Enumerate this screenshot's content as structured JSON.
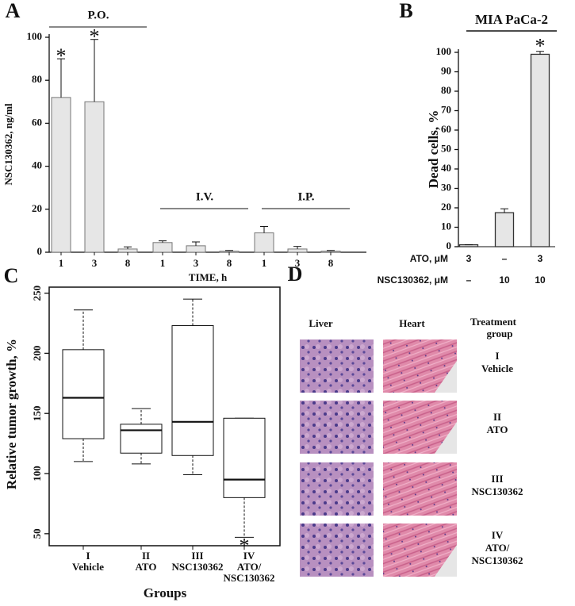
{
  "chart_data": [
    {
      "panel": "A",
      "type": "bar",
      "ylabel": "NSC130362, ng/ml",
      "xlabel": "TIME, h",
      "categories": [
        "1",
        "3",
        "8"
      ],
      "series": [
        {
          "name": "P.O.",
          "values": [
            72,
            70,
            1.5
          ],
          "errors": [
            18,
            29,
            1
          ],
          "significance": [
            "*",
            "*",
            null
          ]
        },
        {
          "name": "I.V.",
          "values": [
            4.5,
            3,
            0.5
          ],
          "errors": [
            0.8,
            1.8,
            0.3
          ],
          "significance": [
            null,
            null,
            null
          ]
        },
        {
          "name": "I.P.",
          "values": [
            9,
            1.5,
            0.5
          ],
          "errors": [
            3,
            1.2,
            0.3
          ],
          "significance": [
            null,
            null,
            null
          ]
        }
      ],
      "color": "#e6e6e6",
      "ylim": [
        0,
        100
      ],
      "yticks": [
        0,
        20,
        40,
        60,
        80,
        100
      ]
    },
    {
      "panel": "B",
      "type": "bar",
      "title": "MIA PaCa-2",
      "ylabel": "Dead cells, %",
      "values": [
        1,
        17.5,
        99
      ],
      "errors": [
        0,
        2,
        1.5
      ],
      "significance": [
        null,
        null,
        "*"
      ],
      "conditions": [
        {
          "name": "ATO, μM",
          "values": [
            "3",
            "–",
            "3"
          ]
        },
        {
          "name": "NSC130362, μM",
          "values": [
            "–",
            "10",
            "10"
          ]
        }
      ],
      "color": "#e6e6e6",
      "ylim": [
        0,
        100
      ],
      "yticks": [
        0,
        10,
        20,
        30,
        40,
        50,
        60,
        70,
        80,
        90,
        100
      ]
    },
    {
      "panel": "C",
      "type": "box",
      "xlabel": "Groups",
      "ylabel": "Relative tumor growth, %",
      "categories": [
        [
          "I",
          "Vehicle"
        ],
        [
          "II",
          "ATO"
        ],
        [
          "III",
          "NSC130362"
        ],
        [
          "IV",
          "ATO/",
          "NSC130362"
        ]
      ],
      "boxes": [
        {
          "low": 110,
          "q1": 129,
          "median": 163,
          "q3": 203,
          "high": 236
        },
        {
          "low": 108,
          "q1": 117,
          "median": 136,
          "q3": 141,
          "high": 154
        },
        {
          "low": 99,
          "q1": 115,
          "median": 143,
          "q3": 223,
          "high": 245
        },
        {
          "low": 47,
          "q1": 80,
          "median": 95,
          "q3": 146,
          "high": 146
        }
      ],
      "significance": [
        null,
        null,
        null,
        "*"
      ],
      "ylim": [
        40,
        255
      ],
      "yticks": [
        50,
        100,
        150,
        200,
        250
      ]
    }
  ],
  "panel_d": {
    "panel": "D",
    "columns": [
      "Liver",
      "Heart"
    ],
    "row_header": [
      "Treatment",
      "group"
    ],
    "rows": [
      [
        "I",
        "Vehicle"
      ],
      [
        "II",
        "ATO"
      ],
      [
        "III",
        "NSC130362"
      ],
      [
        "IV",
        "ATO/",
        "NSC130362"
      ]
    ]
  }
}
